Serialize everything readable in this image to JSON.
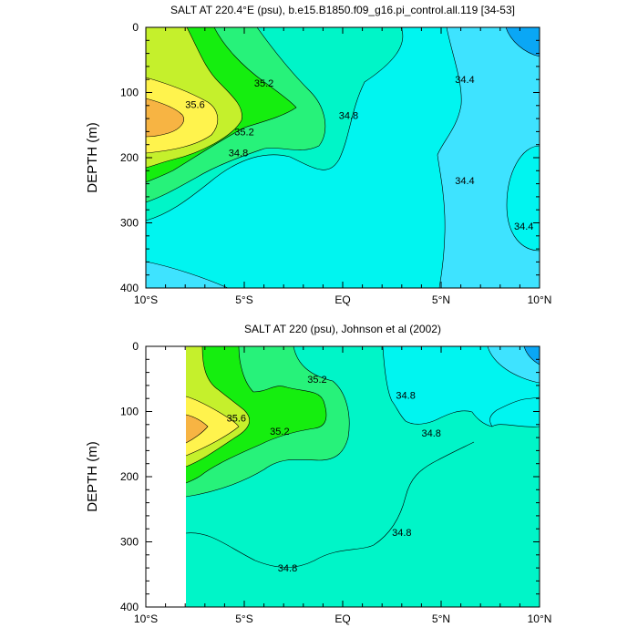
{
  "colors": {
    "orange": "#f7b443",
    "yellow": "#fff34d",
    "lime": "#c5f02c",
    "bright_green": "#7cf000",
    "green": "#15ee0f",
    "mint_green": "#27f27a",
    "aquamarine": "#00f5c8",
    "cyan": "#00f5f0",
    "light_blue": "#3ee3ff",
    "blue": "#0aa7f5"
  },
  "chart_data": [
    {
      "type": "contour",
      "title": "SALT AT 220.4°E (psu), b.e15.B1850.f09_g16.pi_control.all.119 [34-53]",
      "ylabel": "DEPTH (m)",
      "xlim": [
        -10,
        10
      ],
      "ylim": [
        0,
        400
      ],
      "x_ticks": [
        -10,
        -5,
        0,
        5,
        10
      ],
      "x_tick_labels": [
        "10°S",
        "5°S",
        "EQ",
        "5°N",
        "10°N"
      ],
      "y_ticks": [
        0,
        100,
        200,
        300,
        400
      ],
      "y_tick_labels": [
        "0",
        "100",
        "200",
        "300",
        "400"
      ],
      "contour_labels": [
        {
          "text": "35.2",
          "x": -4.0,
          "y": 85
        },
        {
          "text": "35.6",
          "x": -7.5,
          "y": 118
        },
        {
          "text": "35.2",
          "x": -5.0,
          "y": 160
        },
        {
          "text": "34.8",
          "x": -5.3,
          "y": 192
        },
        {
          "text": "34.8",
          "x": 0.3,
          "y": 135
        },
        {
          "text": "34.4",
          "x": 6.2,
          "y": 80
        },
        {
          "text": "34.4",
          "x": 6.2,
          "y": 235
        },
        {
          "text": "34.4",
          "x": 9.2,
          "y": 305
        }
      ]
    },
    {
      "type": "contour",
      "title": "SALT AT 220 (psu), Johnson et al (2002)",
      "ylabel": "DEPTH (m)",
      "xlim": [
        -10,
        10
      ],
      "ylim": [
        0,
        400
      ],
      "x_ticks": [
        -10,
        -5,
        0,
        5,
        10
      ],
      "x_tick_labels": [
        "10°S",
        "5°S",
        "EQ",
        "5°N",
        "10°N"
      ],
      "y_ticks": [
        0,
        100,
        200,
        300,
        400
      ],
      "y_tick_labels": [
        "0",
        "100",
        "200",
        "300",
        "400"
      ],
      "contour_labels": [
        {
          "text": "35.2",
          "x": -1.3,
          "y": 50
        },
        {
          "text": "35.6",
          "x": -5.4,
          "y": 110
        },
        {
          "text": "35.2",
          "x": -3.2,
          "y": 130
        },
        {
          "text": "34.8",
          "x": 3.2,
          "y": 75
        },
        {
          "text": "34.8",
          "x": 4.5,
          "y": 133
        },
        {
          "text": "34.8",
          "x": 3.0,
          "y": 285
        },
        {
          "text": "34.8",
          "x": -2.8,
          "y": 340
        }
      ]
    }
  ]
}
